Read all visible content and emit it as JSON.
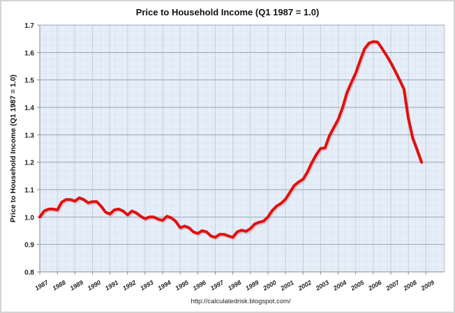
{
  "chart_data": {
    "type": "line",
    "title": "Price to Household Income (Q1 1987 = 1.0)",
    "xlabel": "",
    "ylabel": "Price to Household Income (Q1 1987 = 1.0)",
    "source": "http://calculatedrisk.blogspot.com/",
    "ylim": [
      0.8,
      1.7
    ],
    "yticks": [
      "0.8",
      "0.9",
      "1.0",
      "1.1",
      "1.2",
      "1.3",
      "1.4",
      "1.5",
      "1.6",
      "1.7"
    ],
    "xlim": [
      1987,
      2010
    ],
    "xticks": [
      "1987",
      "1988",
      "1989",
      "1990",
      "1991",
      "1992",
      "1993",
      "1994",
      "1995",
      "1996",
      "1997",
      "1998",
      "1999",
      "2000",
      "2001",
      "2002",
      "2003",
      "2004",
      "2005",
      "2006",
      "2007",
      "2008",
      "2009"
    ],
    "grid": true,
    "line_color": "#e01010",
    "series": [
      {
        "name": "Price to Household Income",
        "x": [
          1987.0,
          1987.25,
          1987.5,
          1987.75,
          1988.0,
          1988.25,
          1988.5,
          1988.75,
          1989.0,
          1989.25,
          1989.5,
          1989.75,
          1990.0,
          1990.25,
          1990.5,
          1990.75,
          1991.0,
          1991.25,
          1991.5,
          1991.75,
          1992.0,
          1992.25,
          1992.5,
          1992.75,
          1993.0,
          1993.25,
          1993.5,
          1993.75,
          1994.0,
          1994.25,
          1994.5,
          1994.75,
          1995.0,
          1995.25,
          1995.5,
          1995.75,
          1996.0,
          1996.25,
          1996.5,
          1996.75,
          1997.0,
          1997.25,
          1997.5,
          1997.75,
          1998.0,
          1998.25,
          1998.5,
          1998.75,
          1999.0,
          1999.25,
          1999.5,
          1999.75,
          2000.0,
          2000.25,
          2000.5,
          2000.75,
          2001.0,
          2001.25,
          2001.5,
          2001.75,
          2002.0,
          2002.25,
          2002.5,
          2002.75,
          2003.0,
          2003.25,
          2003.5,
          2003.75,
          2004.0,
          2004.25,
          2004.5,
          2004.75,
          2005.0,
          2005.25,
          2005.5,
          2005.75,
          2006.0,
          2006.25,
          2006.5,
          2006.75,
          2007.0,
          2007.25,
          2007.5,
          2007.75,
          2008.0,
          2008.25,
          2008.5,
          2008.75
        ],
        "values": [
          1.0,
          1.022,
          1.029,
          1.029,
          1.026,
          1.054,
          1.064,
          1.064,
          1.058,
          1.07,
          1.064,
          1.052,
          1.056,
          1.056,
          1.039,
          1.018,
          1.011,
          1.026,
          1.029,
          1.022,
          1.008,
          1.022,
          1.015,
          1.003,
          0.994,
          1.0,
          1.0,
          0.992,
          0.988,
          1.003,
          0.997,
          0.984,
          0.961,
          0.967,
          0.961,
          0.946,
          0.94,
          0.95,
          0.946,
          0.931,
          0.926,
          0.937,
          0.937,
          0.931,
          0.926,
          0.946,
          0.952,
          0.948,
          0.958,
          0.975,
          0.981,
          0.985,
          1.0,
          1.024,
          1.04,
          1.05,
          1.065,
          1.09,
          1.115,
          1.128,
          1.138,
          1.164,
          1.198,
          1.227,
          1.25,
          1.252,
          1.296,
          1.326,
          1.355,
          1.398,
          1.453,
          1.49,
          1.525,
          1.57,
          1.613,
          1.634,
          1.64,
          1.638,
          1.615,
          1.59,
          1.563,
          1.532,
          1.5,
          1.466,
          1.36,
          1.288,
          1.245,
          1.2
        ]
      }
    ]
  }
}
